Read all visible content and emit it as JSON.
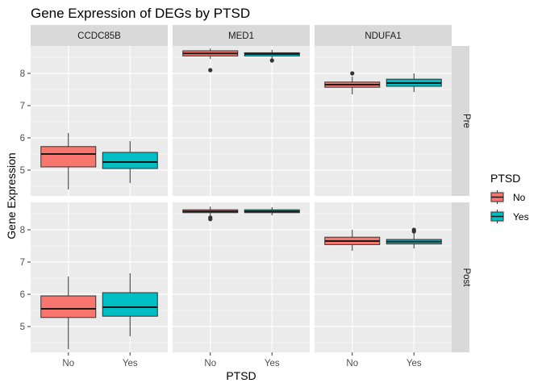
{
  "chart_data": {
    "type": "boxplot",
    "title": "Gene Expression of DEGs by PTSD",
    "xlabel": "PTSD",
    "ylabel": "Gene Expression",
    "categories": [
      "No",
      "Yes"
    ],
    "facet_cols": [
      "CCDC85B",
      "MED1",
      "NDUFA1"
    ],
    "facet_rows": [
      "Pre",
      "Post"
    ],
    "y_ticks": [
      5,
      6,
      7,
      8
    ],
    "ylim": [
      4.2,
      8.85
    ],
    "grid": true,
    "legend": {
      "title": "PTSD",
      "position": "right",
      "items": [
        {
          "label": "No",
          "color": "#F8766D"
        },
        {
          "label": "Yes",
          "color": "#00BFC4"
        }
      ]
    },
    "panels": [
      {
        "row": "Pre",
        "col": "CCDC85B",
        "boxes": [
          {
            "group": "No",
            "min": 4.4,
            "q1": 5.1,
            "median": 5.5,
            "q3": 5.73,
            "max": 6.15,
            "outliers": []
          },
          {
            "group": "Yes",
            "min": 4.6,
            "q1": 5.05,
            "median": 5.25,
            "q3": 5.55,
            "max": 5.9,
            "outliers": []
          }
        ]
      },
      {
        "row": "Pre",
        "col": "MED1",
        "boxes": [
          {
            "group": "No",
            "min": 8.45,
            "q1": 8.54,
            "median": 8.62,
            "q3": 8.7,
            "max": 8.77,
            "outliers": [
              8.1
            ]
          },
          {
            "group": "Yes",
            "min": 8.45,
            "q1": 8.54,
            "median": 8.6,
            "q3": 8.64,
            "max": 8.73,
            "outliers": [
              8.4
            ]
          }
        ]
      },
      {
        "row": "Pre",
        "col": "NDUFA1",
        "boxes": [
          {
            "group": "No",
            "min": 7.35,
            "q1": 7.57,
            "median": 7.65,
            "q3": 7.73,
            "max": 7.9,
            "outliers": [
              8.0
            ]
          },
          {
            "group": "Yes",
            "min": 7.42,
            "q1": 7.6,
            "median": 7.7,
            "q3": 7.82,
            "max": 8.0,
            "outliers": []
          }
        ]
      },
      {
        "row": "Post",
        "col": "CCDC85B",
        "boxes": [
          {
            "group": "No",
            "min": 4.3,
            "q1": 5.28,
            "median": 5.55,
            "q3": 5.95,
            "max": 6.55,
            "outliers": []
          },
          {
            "group": "Yes",
            "min": 4.7,
            "q1": 5.32,
            "median": 5.6,
            "q3": 6.05,
            "max": 6.65,
            "outliers": []
          }
        ]
      },
      {
        "row": "Post",
        "col": "MED1",
        "boxes": [
          {
            "group": "No",
            "min": 8.42,
            "q1": 8.53,
            "median": 8.57,
            "q3": 8.62,
            "max": 8.72,
            "outliers": [
              8.38,
              8.33
            ]
          },
          {
            "group": "Yes",
            "min": 8.45,
            "q1": 8.53,
            "median": 8.57,
            "q3": 8.62,
            "max": 8.7,
            "outliers": []
          }
        ]
      },
      {
        "row": "Post",
        "col": "NDUFA1",
        "boxes": [
          {
            "group": "No",
            "min": 7.35,
            "q1": 7.54,
            "median": 7.65,
            "q3": 7.77,
            "max": 8.0,
            "outliers": []
          },
          {
            "group": "Yes",
            "min": 7.42,
            "q1": 7.56,
            "median": 7.63,
            "q3": 7.7,
            "max": 7.9,
            "outliers": [
              8.0,
              7.95
            ]
          }
        ]
      }
    ]
  }
}
